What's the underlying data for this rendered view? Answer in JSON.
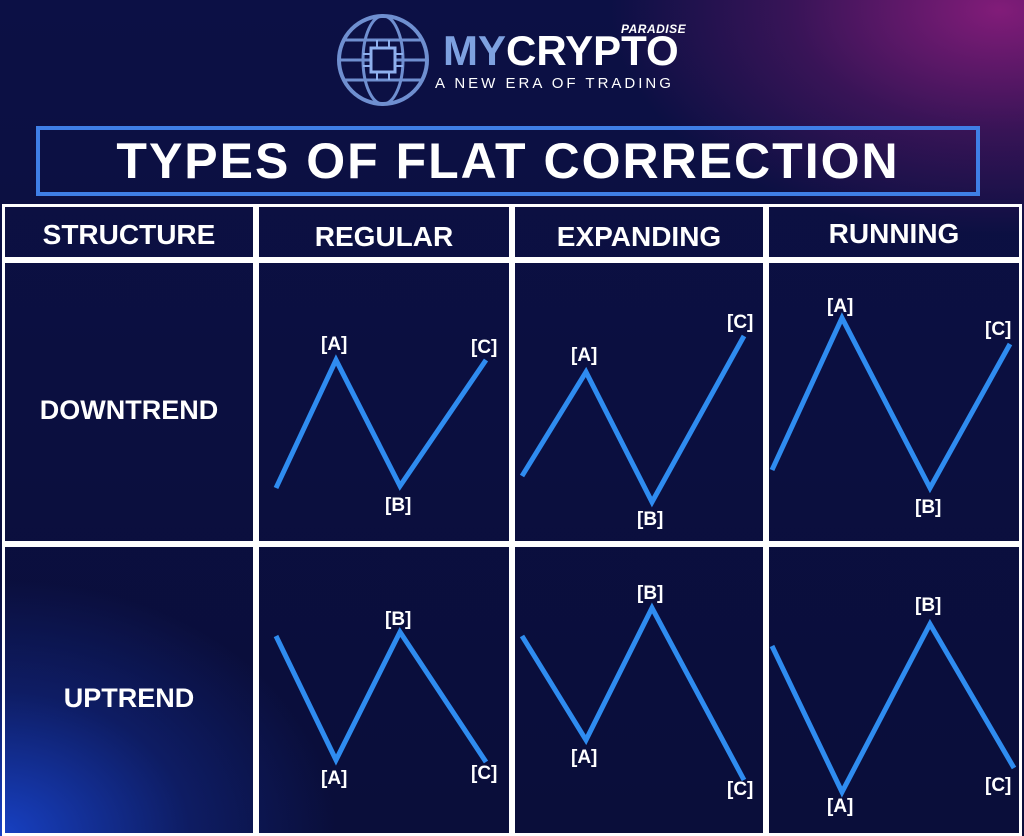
{
  "brand": {
    "tag": "PARADISE",
    "name_part1": "MY",
    "name_part2": "CRYPTO",
    "tagline": "A NEW ERA OF TRADING"
  },
  "title": "TYPES OF FLAT CORRECTION",
  "headers": {
    "structure": "STRUCTURE",
    "regular": "REGULAR",
    "expanding": "EXPANDING",
    "running": "RUNNING"
  },
  "rows": {
    "downtrend": "DOWNTREND",
    "uptrend": "UPTREND"
  },
  "colors": {
    "line": "#2f8cf0",
    "border": "#ffffff",
    "title_border": "#3f7fe6",
    "brand_accent": "#7ea1e0"
  },
  "waves": {
    "downtrend": {
      "regular": {
        "labels": [
          "[A]",
          "[B]",
          "[C]"
        ]
      },
      "expanding": {
        "labels": [
          "[A]",
          "[B]",
          "[C]"
        ]
      },
      "running": {
        "labels": [
          "[A]",
          "[B]",
          "[C]"
        ]
      }
    },
    "uptrend": {
      "regular": {
        "labels": [
          "[A]",
          "[B]",
          "[C]"
        ]
      },
      "expanding": {
        "labels": [
          "[A]",
          "[B]",
          "[C]"
        ]
      },
      "running": {
        "labels": [
          "[A]",
          "[B]",
          "[C]"
        ]
      }
    }
  }
}
